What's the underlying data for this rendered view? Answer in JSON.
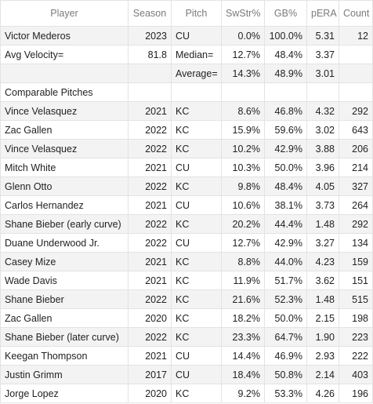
{
  "headers": {
    "player": "Player",
    "season": "Season",
    "pitch": "Pitch",
    "swstr": "SwStr%",
    "gb": "GB%",
    "pera": "pERA",
    "count": "Count"
  },
  "target": {
    "player": "Victor Mederos",
    "season": "2023",
    "pitch": "CU",
    "swstr": "0.0%",
    "gb": "100.0%",
    "pera": "5.31",
    "count": "12"
  },
  "velocity": {
    "label": "Avg Velocity=",
    "value": "81.8",
    "median_label": "Median=",
    "median_swstr": "12.7%",
    "median_gb": "48.4%",
    "median_pera": "3.37",
    "average_label": "Average=",
    "average_swstr": "14.3%",
    "average_gb": "48.9%",
    "average_pera": "3.01"
  },
  "comparables_label": "Comparable Pitches",
  "rows": [
    {
      "player": "Vince Velasquez",
      "season": "2021",
      "pitch": "KC",
      "swstr": "8.6%",
      "gb": "46.8%",
      "pera": "4.32",
      "count": "292"
    },
    {
      "player": "Zac Gallen",
      "season": "2022",
      "pitch": "KC",
      "swstr": "15.9%",
      "gb": "59.6%",
      "pera": "3.02",
      "count": "643"
    },
    {
      "player": "Vince Velasquez",
      "season": "2022",
      "pitch": "KC",
      "swstr": "10.2%",
      "gb": "42.9%",
      "pera": "3.88",
      "count": "206"
    },
    {
      "player": "Mitch White",
      "season": "2021",
      "pitch": "CU",
      "swstr": "10.3%",
      "gb": "50.0%",
      "pera": "3.96",
      "count": "214"
    },
    {
      "player": "Glenn Otto",
      "season": "2022",
      "pitch": "KC",
      "swstr": "9.8%",
      "gb": "48.4%",
      "pera": "4.05",
      "count": "327"
    },
    {
      "player": "Carlos Hernandez",
      "season": "2021",
      "pitch": "CU",
      "swstr": "10.6%",
      "gb": "38.1%",
      "pera": "3.73",
      "count": "264"
    },
    {
      "player": "Shane Bieber (early curve)",
      "season": "2022",
      "pitch": "KC",
      "swstr": "20.2%",
      "gb": "44.4%",
      "pera": "1.48",
      "count": "292"
    },
    {
      "player": "Duane Underwood Jr.",
      "season": "2022",
      "pitch": "CU",
      "swstr": "12.7%",
      "gb": "42.9%",
      "pera": "3.27",
      "count": "134"
    },
    {
      "player": "Casey Mize",
      "season": "2021",
      "pitch": "KC",
      "swstr": "8.8%",
      "gb": "44.0%",
      "pera": "4.23",
      "count": "159"
    },
    {
      "player": "Wade Davis",
      "season": "2021",
      "pitch": "KC",
      "swstr": "11.9%",
      "gb": "51.7%",
      "pera": "3.62",
      "count": "151"
    },
    {
      "player": "Shane Bieber",
      "season": "2022",
      "pitch": "KC",
      "swstr": "21.6%",
      "gb": "52.3%",
      "pera": "1.48",
      "count": "515"
    },
    {
      "player": "Zac Gallen",
      "season": "2020",
      "pitch": "KC",
      "swstr": "18.2%",
      "gb": "50.0%",
      "pera": "2.15",
      "count": "198"
    },
    {
      "player": "Shane Bieber (later curve)",
      "season": "2022",
      "pitch": "KC",
      "swstr": "23.3%",
      "gb": "64.7%",
      "pera": "1.90",
      "count": "223"
    },
    {
      "player": "Keegan Thompson",
      "season": "2021",
      "pitch": "CU",
      "swstr": "14.4%",
      "gb": "46.9%",
      "pera": "2.93",
      "count": "222"
    },
    {
      "player": "Justin Grimm",
      "season": "2017",
      "pitch": "CU",
      "swstr": "18.4%",
      "gb": "50.8%",
      "pera": "2.14",
      "count": "403"
    },
    {
      "player": "Jorge Lopez",
      "season": "2020",
      "pitch": "KC",
      "swstr": "9.2%",
      "gb": "53.3%",
      "pera": "4.26",
      "count": "196"
    }
  ]
}
